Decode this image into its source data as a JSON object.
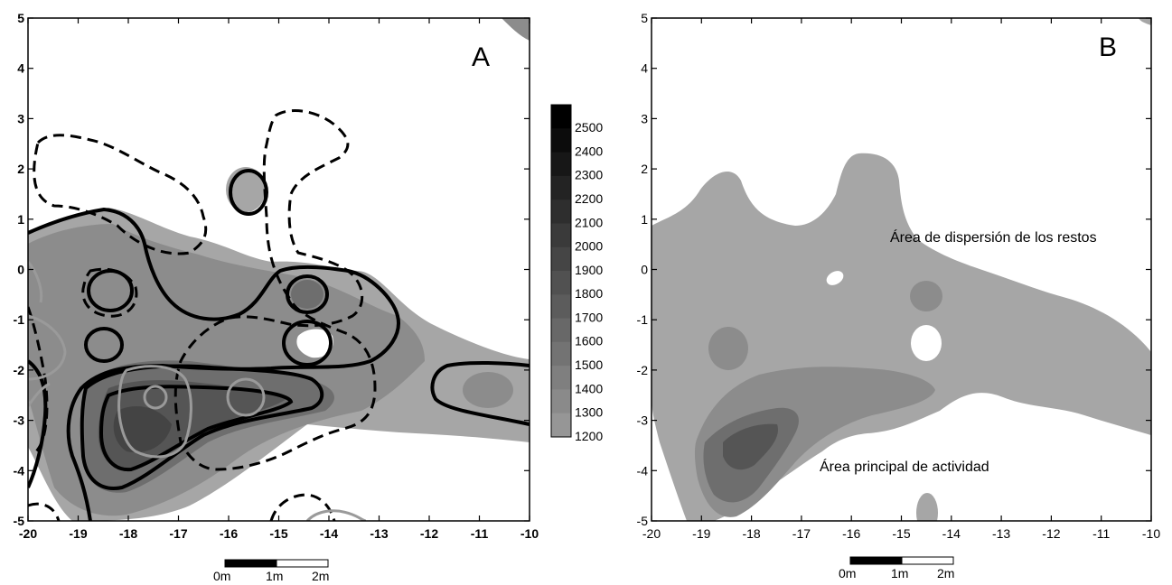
{
  "chart_data": [
    {
      "type": "heatmap",
      "panel_label": "A",
      "xlim": [
        -20,
        -10
      ],
      "ylim": [
        -5,
        5
      ],
      "x_ticks": [
        "-20",
        "-19",
        "-18",
        "-17",
        "-16",
        "-15",
        "-14",
        "-13",
        "-12",
        "-11",
        "-10"
      ],
      "y_ticks": [
        "5",
        "4",
        "3",
        "2",
        "1",
        "0",
        "-1",
        "-2",
        "-3",
        "-4",
        "-5"
      ],
      "colorbar": {
        "labels": [
          "2500",
          "2400",
          "2300",
          "2200",
          "2100",
          "2000",
          "1900",
          "1800",
          "1700",
          "1600",
          "1500",
          "1400",
          "1300",
          "1200"
        ],
        "min": 1200,
        "max": 2500
      },
      "scale_bar": {
        "labels": [
          "0m",
          "1m",
          "2m"
        ]
      },
      "grid": false
    },
    {
      "type": "heatmap",
      "panel_label": "B",
      "xlim": [
        -20,
        -10
      ],
      "ylim": [
        -5,
        5
      ],
      "x_ticks": [
        "-20",
        "-19",
        "-18",
        "-17",
        "-16",
        "-15",
        "-14",
        "-13",
        "-12",
        "-11",
        "-10"
      ],
      "y_ticks": [
        "5",
        "4",
        "3",
        "2",
        "1",
        "0",
        "-1",
        "-2",
        "-3",
        "-4",
        "-5"
      ],
      "annotations": [
        "Área de dispersión de los restos",
        "Área principal de actividad"
      ],
      "scale_bar": {
        "labels": [
          "0m",
          "1m",
          "2m"
        ]
      },
      "grid": false
    }
  ],
  "colors": {
    "level_light": "#a6a6a6",
    "level_mid": "#8c8c8c",
    "level_dark": "#6e6e6e",
    "level_darker": "#555555",
    "level_darkest": "#444444",
    "contour_black": "#000000",
    "contour_gray": "#9a9a9a"
  }
}
